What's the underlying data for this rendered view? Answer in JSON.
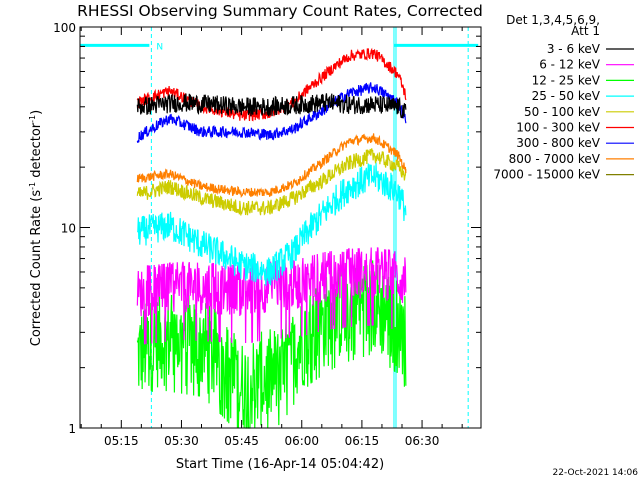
{
  "chart_data": {
    "type": "line",
    "title": "RHESSI Observing Summary Count Rates, Corrected",
    "xlabel": "Start Time (16-Apr-14 05:04:42)",
    "ylabel": "Corrected Count Rate (s⁻¹ detector⁻¹)",
    "ylabel_main": "Corrected Count Rate (s",
    "ylabel_sup1": "-1",
    "ylabel_mid": " detector",
    "ylabel_sup2": "-1",
    "ylabel_end": ")",
    "yscale": "log",
    "ylim": [
      1,
      100
    ],
    "y_ticks": [
      {
        "value": 1,
        "label": "1"
      },
      {
        "value": 10,
        "label": "10"
      },
      {
        "value": 100,
        "label": "100"
      }
    ],
    "xlim": [
      "05:04:42",
      "06:44:42"
    ],
    "x_ticks": [
      "05:15",
      "05:30",
      "05:45",
      "06:00",
      "06:15",
      "06:30"
    ],
    "x_tick_minutes": [
      15,
      30,
      45,
      60,
      75,
      90
    ],
    "x_start_minute": 4.7,
    "x_end_minute": 104.7,
    "data_start_minute": 19.0,
    "data_end_minute": 86.0,
    "legend_location": "right",
    "legend_header": [
      "Det 1,3,4,5,6,9,",
      "Att 1"
    ],
    "annotation_night_label": "N",
    "series": [
      {
        "name": "3 - 6 keV",
        "color": "#000000",
        "noise": 0.05,
        "x": [
          19,
          30,
          45,
          52,
          60,
          66,
          72,
          78,
          84,
          86
        ],
        "y": [
          40,
          42,
          40,
          40,
          41,
          42,
          41,
          41,
          40,
          37
        ]
      },
      {
        "name": "6 - 12 keV",
        "color": "#ff00ff",
        "noise": 0.13,
        "x": [
          19,
          30,
          45,
          52,
          60,
          66,
          72,
          78,
          84,
          86
        ],
        "y": [
          4.7,
          5.0,
          4.8,
          5.0,
          5.2,
          5.6,
          5.8,
          5.9,
          5.6,
          5.2
        ]
      },
      {
        "name": "12 - 25 keV",
        "color": "#00ff00",
        "noise": 0.25,
        "x": [
          19,
          25,
          35,
          45,
          55,
          62,
          70,
          77,
          84,
          86
        ],
        "y": [
          2.3,
          2.8,
          2.6,
          1.6,
          1.9,
          3.0,
          3.8,
          4.2,
          3.4,
          2.6
        ]
      },
      {
        "name": "25 - 50 keV",
        "color": "#00ffff",
        "noise": 0.08,
        "x": [
          19,
          27,
          35,
          45,
          52,
          58,
          65,
          72,
          78,
          84,
          86
        ],
        "y": [
          9.5,
          10.2,
          8.2,
          6.5,
          6.0,
          7.5,
          11.5,
          16.0,
          18.0,
          15.0,
          12.0
        ]
      },
      {
        "name": "50 - 100 keV",
        "color": "#cccc00",
        "noise": 0.04,
        "x": [
          19,
          27,
          35,
          45,
          52,
          58,
          65,
          72,
          78,
          84,
          86
        ],
        "y": [
          14.5,
          16.0,
          14.0,
          12.5,
          12.5,
          14.0,
          17.0,
          21.0,
          23.0,
          20.0,
          18.0
        ]
      },
      {
        "name": "100 - 300 keV",
        "color": "#ff0000",
        "noise": 0.03,
        "x": [
          19,
          27,
          35,
          45,
          52,
          58,
          65,
          72,
          78,
          84,
          86
        ],
        "y": [
          42,
          48,
          40,
          36,
          37,
          42,
          56,
          72,
          74,
          58,
          45
        ]
      },
      {
        "name": "300 - 800 keV",
        "color": "#0000ff",
        "noise": 0.03,
        "x": [
          19,
          27,
          35,
          45,
          52,
          58,
          65,
          72,
          78,
          84,
          86
        ],
        "y": [
          28,
          35,
          30,
          30,
          29,
          31,
          38,
          47,
          50,
          42,
          34
        ]
      },
      {
        "name": "800 - 7000 keV",
        "color": "#ff7f00",
        "noise": 0.025,
        "x": [
          19,
          27,
          35,
          45,
          52,
          58,
          65,
          72,
          78,
          84,
          86
        ],
        "y": [
          17.5,
          18.5,
          16.0,
          15.0,
          15.0,
          16.5,
          21.0,
          27.0,
          28.0,
          23.0,
          19.0
        ]
      },
      {
        "name": "7000 - 15000 keV",
        "color": "#808000",
        "noise": 0,
        "x": [],
        "y": []
      }
    ],
    "overlays": {
      "cyan_color": "#00ffff",
      "segments": [
        {
          "from": "05:04:42",
          "to": "05:22",
          "level": 81
        },
        {
          "from": "06:23",
          "to": "06:44",
          "level": 81
        }
      ],
      "dashed_vertical_minutes": [
        22.5,
        101.5
      ],
      "solid_vertical_minutes": [
        83.5
      ]
    },
    "timestamp": "22-Oct-2021 14:06"
  }
}
